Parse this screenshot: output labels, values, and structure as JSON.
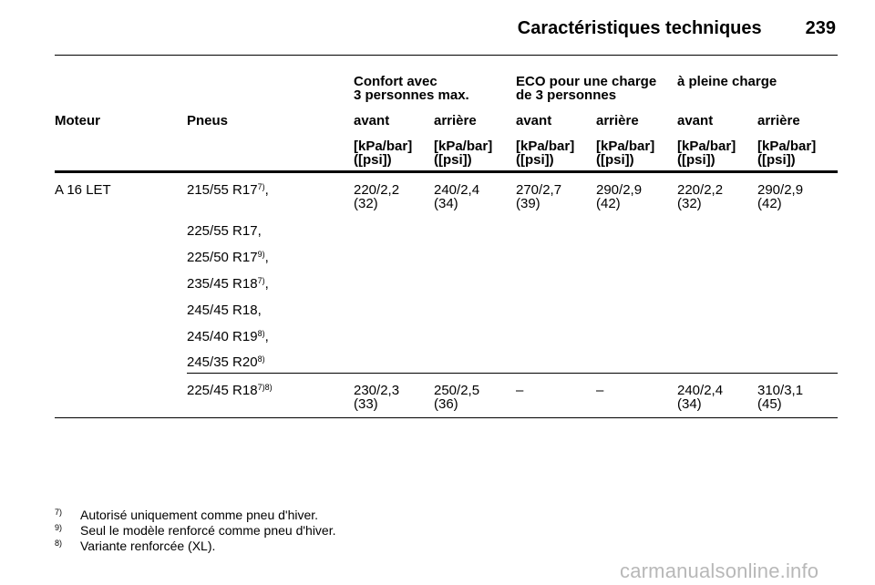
{
  "header": {
    "title": "Caractéristiques techniques",
    "page_number": "239"
  },
  "groups": [
    {
      "line1": "Confort avec",
      "line2": "3 personnes max."
    },
    {
      "line1": "ECO pour une charge",
      "line2": "de 3 personnes"
    },
    {
      "line1": "à pleine charge",
      "line2": ""
    }
  ],
  "columns": {
    "engine": "Moteur",
    "tyres": "Pneus",
    "sub": [
      "avant",
      "arrière",
      "avant",
      "arrière",
      "avant",
      "arrière"
    ],
    "unit_line1": "[kPa/bar]",
    "unit_line2": "([psi])"
  },
  "rows": [
    {
      "engine": "A 16 LET",
      "tyres": [
        {
          "size": "215/55 R17",
          "note": "7)",
          "suffix": ","
        },
        {
          "size": "225/55 R17,",
          "note": "",
          "suffix": ""
        },
        {
          "size": "225/50 R17",
          "note": "9)",
          "suffix": ","
        },
        {
          "size": "235/45 R18",
          "note": "7)",
          "suffix": ","
        },
        {
          "size": "245/45 R18,",
          "note": "",
          "suffix": ""
        },
        {
          "size": "245/40 R19",
          "note": "8)",
          "suffix": ","
        },
        {
          "size": "245/35 R20",
          "note": "8)",
          "suffix": ""
        }
      ],
      "values": [
        {
          "a": "220/2,2",
          "b": "(32)"
        },
        {
          "a": "240/2,4",
          "b": "(34)"
        },
        {
          "a": "270/2,7",
          "b": "(39)"
        },
        {
          "a": "290/2,9",
          "b": "(42)"
        },
        {
          "a": "220/2,2",
          "b": "(32)"
        },
        {
          "a": "290/2,9",
          "b": "(42)"
        }
      ]
    },
    {
      "engine": "",
      "tyres": [
        {
          "size": "225/45 R18",
          "note": "7)8)",
          "suffix": ""
        }
      ],
      "values": [
        {
          "a": "230/2,3",
          "b": "(33)"
        },
        {
          "a": "250/2,5",
          "b": "(36)"
        },
        {
          "a": "–",
          "b": ""
        },
        {
          "a": "–",
          "b": ""
        },
        {
          "a": "240/2,4",
          "b": "(34)"
        },
        {
          "a": "310/3,1",
          "b": "(45)"
        }
      ]
    }
  ],
  "footnotes": [
    {
      "num": "7)",
      "text": "Autorisé uniquement comme pneu d'hiver."
    },
    {
      "num": "9)",
      "text": "Seul le modèle renforcé comme pneu d'hiver."
    },
    {
      "num": "8)",
      "text": "Variante renforcée (XL)."
    }
  ],
  "watermark": "carmanualsonline.info"
}
